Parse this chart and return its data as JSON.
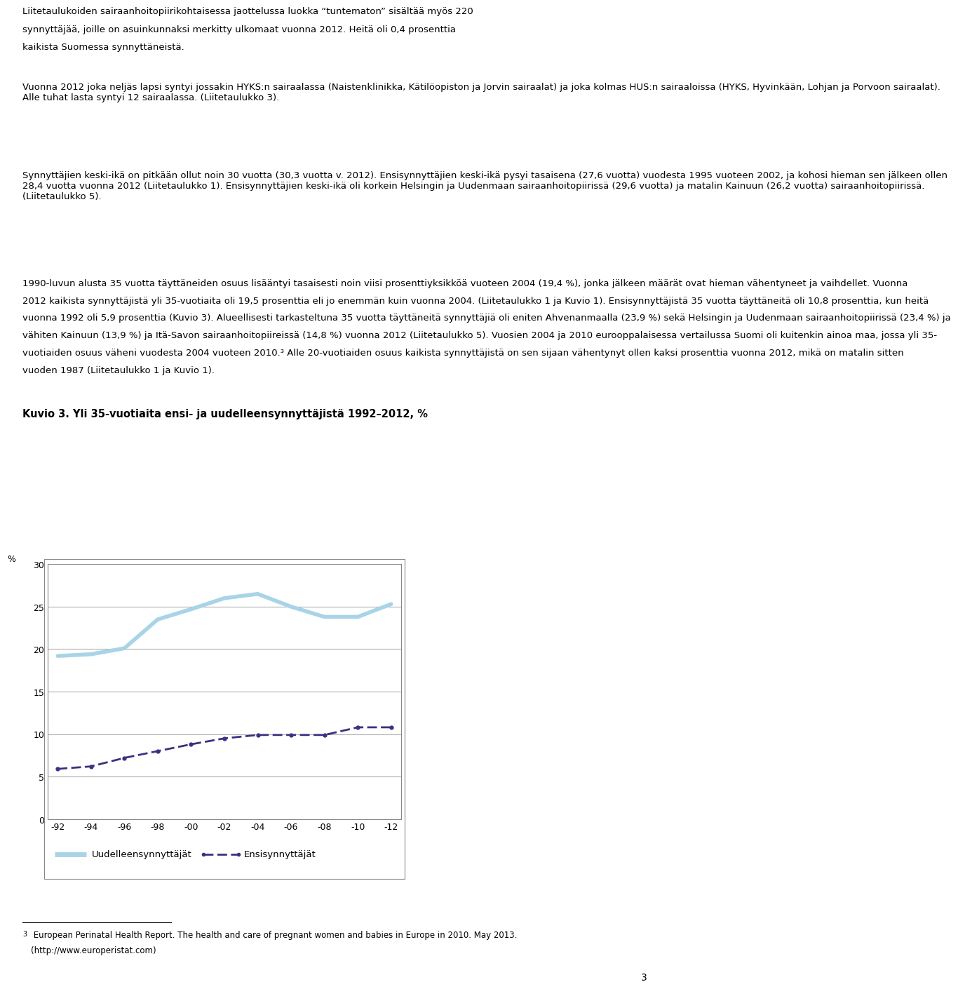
{
  "paragraph0_lines": [
    "Liitetaulukoiden sairaanhoitopiirikohtaisessa jaottelussa luokka “tuntematon” sisältää myös 220",
    "synnyttäjää, joille on asuinkunnaksi merkitty ulkomaat vuonna 2012. Heitä oli 0,4 prosenttia",
    "kaikista Suomessa synnyttäneistä."
  ],
  "paragraph1": "Vuonna 2012 joka neljäs lapsi syntyi jossakin HYKS:n sairaalassa (Naistenklinikka, Kätilöopiston ja Jorvin sairaalat) ja joka kolmas HUS:n sairaaloissa (HYKS, Hyvinkään, Lohjan ja Porvoon sairaalat). Alle tuhat lasta syntyi 12 sairaalassa. (Liitetaulukko 3).",
  "paragraph2": "Synnyttäjien keski-ikä on pitkään ollut noin 30 vuotta (30,3 vuotta v. 2012). Ensisynnyttäjien keski-ikä pysyi tasaisena (27,6 vuotta) vuodesta 1995 vuoteen 2002, ja kohosi hieman sen jälkeen ollen 28,4 vuotta vuonna 2012 (Liitetaulukko 1). Ensisynnyttäjien keski-ikä oli korkein Helsingin ja Uudenmaan sairaanhoitopiirissä (29,6 vuotta) ja matalin Kainuun (26,2 vuotta) sairaanhoitopiirissä. (Liitetaulukko 5).",
  "paragraph3_lines": [
    "1990-luvun alusta 35 vuotta täyttäneiden osuus lisääntyi tasaisesti noin viisi prosenttiyksikköä vuoteen 2004 (19,4 %), jonka jälkeen määrät ovat hieman vähentyneet ja vaihdellet. Vuonna",
    "2012 kaikista synnyttäjistä yli 35-vuotiaita oli 19,5 prosenttia eli jo enemmän kuin vuonna 2004. (Liitetaulukko 1 ja Kuvio 1). Ensisynnyttäjistä 35 vuotta täyttäneitä oli 10,8 prosenttia, kun heitä",
    "vuonna 1992 oli 5,9 prosenttia (Kuvio 3). Alueellisesti tarkasteltuna 35 vuotta täyttäneitä synnyttäjiä oli eniten Ahvenanmaalla (23,9 %) sekä Helsingin ja Uudenmaan sairaanhoitopiirissä (23,4 %) ja",
    "vähiten Kainuun (13,9 %) ja Itä-Savon sairaanhoitopiireissä (14,8 %) vuonna 2012 (Liitetaulukko 5). Vuosien 2004 ja 2010 eurooppalaisessa vertailussa Suomi oli kuitenkin ainoa maa, jossa yli 35-",
    "vuotiaiden osuus väheni vuodesta 2004 vuoteen 2010.³ Alle 20-vuotiaiden osuus kaikista synnyttäjistä on sen sijaan vähentynyt ollen kaksi prosenttia vuonna 2012, mikä on matalin sitten",
    "vuoden 1987 (Liitetaulukko 1 ja Kuvio 1)."
  ],
  "chart_title": "Kuvio 3. Yli 35-vuotiaita ensi- ja uudelleensynnyttäjistä 1992–2012, %",
  "year_labels": [
    "-92",
    "-94",
    "-96",
    "-98",
    "-00",
    "-02",
    "-04",
    "-06",
    "-08",
    "-10",
    "-12"
  ],
  "uudelleen_data": [
    19.2,
    19.4,
    20.1,
    23.5,
    24.7,
    26.0,
    26.5,
    25.0,
    23.8,
    23.8,
    25.3
  ],
  "ensi_data": [
    5.9,
    6.2,
    7.2,
    8.0,
    8.8,
    9.5,
    9.9,
    9.9,
    9.9,
    10.8,
    10.8
  ],
  "ylim": [
    0,
    30
  ],
  "yticks": [
    0,
    5,
    10,
    15,
    20,
    25,
    30
  ],
  "ylabel": "%",
  "uudelleen_color": "#a8d4e6",
  "ensi_color": "#3d3080",
  "legend_uudelleen": "Uudelleensynnyttäjät",
  "legend_ensi": "Ensisynnyttäjät",
  "footnote_superscript": "3",
  "footnote_line": " European Perinatal Health Report. The health and care of pregnant women and babies in Europe in 2010. May 2013.",
  "footnote_url": "(http://www.europeristat.com)",
  "page_number": "3",
  "background_color": "#ffffff",
  "text_color": "#000000",
  "grid_color": "#b0b0b0"
}
